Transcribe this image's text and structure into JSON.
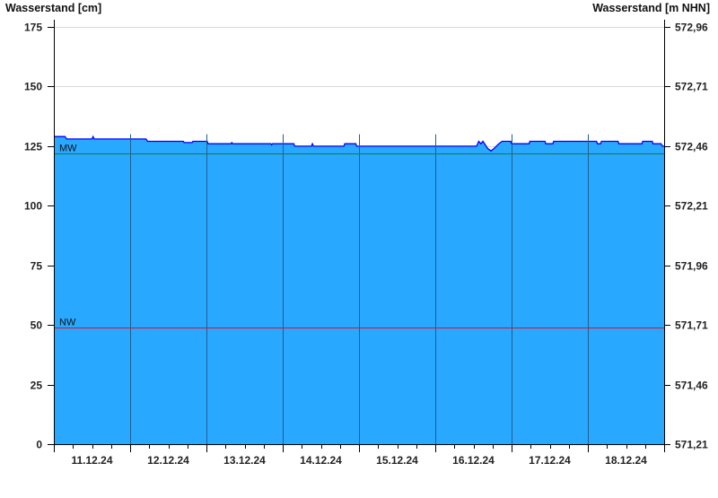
{
  "chart_data": {
    "type": "area",
    "ylabel_left": "Wasserstand [cm]",
    "ylabel_right": "Wasserstand [m NHN]",
    "ylim": [
      0,
      175
    ],
    "yticks": [
      0,
      25,
      50,
      75,
      100,
      125,
      150,
      175
    ],
    "yticks_right": [
      "571,21",
      "571,46",
      "571,71",
      "571,96",
      "572,21",
      "572,46",
      "572,71",
      "572,96"
    ],
    "xlim": [
      "2024-12-11 00:00",
      "2024-12-19 00:00"
    ],
    "xtick_labels": [
      "11.12.24",
      "12.12.24",
      "13.12.24",
      "14.12.24",
      "15.12.24",
      "16.12.24",
      "17.12.24",
      "18.12.24"
    ],
    "grid": true,
    "colors": {
      "fill": "#29a8ff",
      "line": "#0000ff",
      "mw": "#1a7a3a",
      "nw": "#e0102a",
      "day_grid": "#1f5f8f",
      "h_grid": "#d8d8d8"
    },
    "reference_lines": [
      {
        "label": "MW",
        "value": 122
      },
      {
        "label": "NW",
        "value": 49
      }
    ],
    "series": [
      {
        "points": [
          [
            "2024-12-11 00:00",
            129
          ],
          [
            "2024-12-11 03:30",
            129
          ],
          [
            "2024-12-11 04:00",
            128
          ],
          [
            "2024-12-11 12:00",
            128
          ],
          [
            "2024-12-11 12:20",
            129
          ],
          [
            "2024-12-11 12:40",
            128
          ],
          [
            "2024-12-12 05:00",
            128
          ],
          [
            "2024-12-12 05:30",
            127
          ],
          [
            "2024-12-12 16:45",
            127
          ],
          [
            "2024-12-12 17:00",
            126.5
          ],
          [
            "2024-12-12 19:30",
            126.5
          ],
          [
            "2024-12-12 19:45",
            127
          ],
          [
            "2024-12-13 00:15",
            127
          ],
          [
            "2024-12-13 00:30",
            126
          ],
          [
            "2024-12-13 07:45",
            126
          ],
          [
            "2024-12-13 08:00",
            126.5
          ],
          [
            "2024-12-13 08:15",
            126
          ],
          [
            "2024-12-13 20:15",
            126
          ],
          [
            "2024-12-13 20:30",
            125.5
          ],
          [
            "2024-12-13 20:45",
            126
          ],
          [
            "2024-12-14 03:30",
            126
          ],
          [
            "2024-12-14 03:45",
            125
          ],
          [
            "2024-12-14 09:00",
            125
          ],
          [
            "2024-12-14 09:20",
            126
          ],
          [
            "2024-12-14 09:40",
            125
          ],
          [
            "2024-12-14 19:15",
            125
          ],
          [
            "2024-12-14 19:30",
            126
          ],
          [
            "2024-12-14 23:00",
            126
          ],
          [
            "2024-12-14 23:15",
            125
          ],
          [
            "2024-12-16 13:00",
            125
          ],
          [
            "2024-12-16 13:40",
            127
          ],
          [
            "2024-12-16 14:20",
            126
          ],
          [
            "2024-12-16 15:00",
            127
          ],
          [
            "2024-12-16 16:30",
            124
          ],
          [
            "2024-12-16 17:30",
            123
          ],
          [
            "2024-12-16 18:30",
            124
          ],
          [
            "2024-12-16 20:00",
            126
          ],
          [
            "2024-12-16 21:00",
            127
          ],
          [
            "2024-12-16 23:45",
            127
          ],
          [
            "2024-12-17 00:00",
            126
          ],
          [
            "2024-12-17 05:30",
            126
          ],
          [
            "2024-12-17 05:45",
            127
          ],
          [
            "2024-12-17 10:30",
            127
          ],
          [
            "2024-12-17 10:45",
            126
          ],
          [
            "2024-12-17 13:00",
            126
          ],
          [
            "2024-12-17 13:15",
            127
          ],
          [
            "2024-12-18 02:45",
            127
          ],
          [
            "2024-12-18 03:00",
            126
          ],
          [
            "2024-12-18 04:00",
            126
          ],
          [
            "2024-12-18 04:15",
            127
          ],
          [
            "2024-12-18 09:30",
            127
          ],
          [
            "2024-12-18 09:45",
            126
          ],
          [
            "2024-12-18 17:00",
            126
          ],
          [
            "2024-12-18 17:15",
            127
          ],
          [
            "2024-12-18 20:15",
            127
          ],
          [
            "2024-12-18 20:30",
            126
          ],
          [
            "2024-12-18 23:00",
            126
          ],
          [
            "2024-12-18 23:30",
            125
          ],
          [
            "2024-12-19 00:00",
            125
          ]
        ]
      }
    ]
  }
}
